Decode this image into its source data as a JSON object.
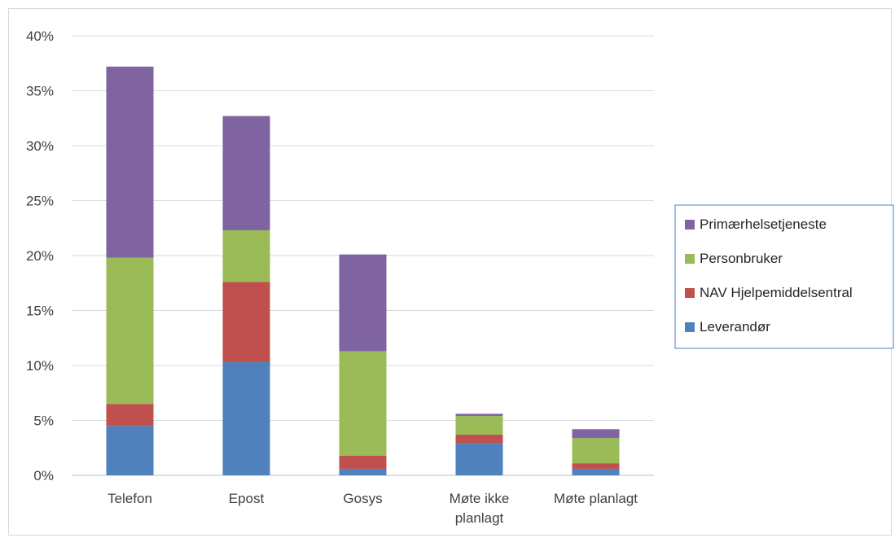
{
  "chart_data": {
    "type": "bar",
    "stacked": true,
    "categories": [
      [
        "Telefon"
      ],
      [
        "Epost"
      ],
      [
        "Gosys"
      ],
      [
        "Møte ikke",
        "planlagt"
      ],
      [
        "Møte planlagt"
      ]
    ],
    "series": [
      {
        "name": "Leverandør",
        "color": "#4f81bd",
        "values": [
          4.5,
          10.3,
          0.6,
          2.9,
          0.6
        ]
      },
      {
        "name": "NAV Hjelpemiddelsentral",
        "color": "#c0504d",
        "values": [
          2.0,
          7.3,
          1.2,
          0.8,
          0.5
        ]
      },
      {
        "name": "Personbruker",
        "color": "#9bbb59",
        "values": [
          13.3,
          4.7,
          9.5,
          1.7,
          2.3
        ]
      },
      {
        "name": "Primærhelsetjeneste",
        "color": "#8064a2",
        "values": [
          17.4,
          10.4,
          8.8,
          0.2,
          0.8
        ]
      }
    ],
    "ylim": [
      0,
      40
    ],
    "yticks": [
      "0%",
      "5%",
      "10%",
      "15%",
      "20%",
      "25%",
      "30%",
      "35%",
      "40%"
    ],
    "grid": true,
    "legend": {
      "position": "right",
      "order": [
        "Primærhelsetjeneste",
        "Personbruker",
        "NAV Hjelpemiddelsentral",
        "Leverandør"
      ]
    },
    "xlabel": "",
    "ylabel": "",
    "title": ""
  }
}
